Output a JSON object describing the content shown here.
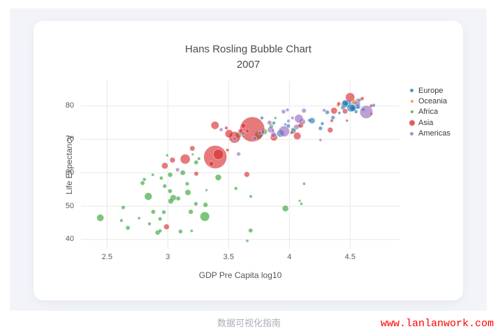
{
  "page": {
    "caption": "数据可视化指南",
    "watermark": "www.lanlanwork.com"
  },
  "chart_data": {
    "type": "scatter",
    "title": "Hans Rosling Bubble Chart",
    "subtitle": "2007",
    "xlabel": "GDP Pre Capita log10",
    "ylabel": "Life Expectancy",
    "xticks": [
      2.5,
      3,
      3.5,
      4,
      4.5
    ],
    "yticks": [
      40,
      50,
      60,
      70,
      80
    ],
    "xlim": [
      2.29,
      4.91
    ],
    "ylim": [
      37.3,
      87.5
    ],
    "grid": true,
    "legend_position": "right",
    "size_encoding": "population-millions",
    "point_format": [
      "gdp_per_capita_log10",
      "life_expectancy",
      "population_millions"
    ],
    "series": [
      {
        "name": "Europe",
        "color": "#1f77b4",
        "legend_marker_r": 2.4,
        "points": [
          [
            3.774,
            76.4,
            3.6
          ],
          [
            4.558,
            79.8,
            8.2
          ],
          [
            4.528,
            79.4,
            10.4
          ],
          [
            3.872,
            74.9,
            4.6
          ],
          [
            4.029,
            73.0,
            7.3
          ],
          [
            4.165,
            75.7,
            4.5
          ],
          [
            4.359,
            76.5,
            10.2
          ],
          [
            4.548,
            78.3,
            5.5
          ],
          [
            4.521,
            79.3,
            5.2
          ],
          [
            4.484,
            80.7,
            61.1
          ],
          [
            4.507,
            79.4,
            82.4
          ],
          [
            4.44,
            79.5,
            10.7
          ],
          [
            4.256,
            73.3,
            10.0
          ],
          [
            4.558,
            81.8,
            0.3
          ],
          [
            4.609,
            78.9,
            4.1
          ],
          [
            4.456,
            80.5,
            58.1
          ],
          [
            3.966,
            74.5,
            0.7
          ],
          [
            4.566,
            79.8,
            16.6
          ],
          [
            4.693,
            80.2,
            4.6
          ],
          [
            4.187,
            75.6,
            38.5
          ],
          [
            4.312,
            78.1,
            10.6
          ],
          [
            4.034,
            72.5,
            22.3
          ],
          [
            3.991,
            74.0,
            10.2
          ],
          [
            4.271,
            74.7,
            5.4
          ],
          [
            4.411,
            77.9,
            2.0
          ],
          [
            4.46,
            80.9,
            40.4
          ],
          [
            4.53,
            80.9,
            9.0
          ],
          [
            4.574,
            81.7,
            7.5
          ],
          [
            3.927,
            71.8,
            71.2
          ],
          [
            4.521,
            79.4,
            60.8
          ]
        ]
      },
      {
        "name": "Oceania",
        "color": "#ff7f0e",
        "legend_marker_r": 2.0,
        "points": [
          [
            4.537,
            81.2,
            20.4
          ],
          [
            4.401,
            80.2,
            4.1
          ]
        ]
      },
      {
        "name": "Africa",
        "color": "#2ca02c",
        "legend_marker_r": 2.0,
        "points": [
          [
            3.794,
            72.3,
            33.3
          ],
          [
            3.681,
            42.7,
            12.4
          ],
          [
            3.159,
            56.7,
            8.1
          ],
          [
            4.099,
            50.7,
            1.6
          ],
          [
            3.085,
            52.3,
            14.3
          ],
          [
            2.633,
            49.6,
            8.4
          ],
          [
            3.31,
            50.4,
            17.7
          ],
          [
            2.849,
            44.7,
            4.4
          ],
          [
            3.231,
            50.7,
            10.2
          ],
          [
            2.994,
            65.2,
            0.7
          ],
          [
            2.444,
            46.5,
            64.6
          ],
          [
            3.56,
            55.3,
            3.8
          ],
          [
            3.189,
            48.3,
            18.0
          ],
          [
            3.318,
            54.8,
            0.5
          ],
          [
            3.747,
            71.3,
            80.3
          ],
          [
            4.085,
            51.6,
            0.6
          ],
          [
            2.807,
            58.0,
            4.9
          ],
          [
            2.839,
            52.9,
            76.5
          ],
          [
            4.121,
            56.7,
            1.5
          ],
          [
            2.876,
            59.4,
            1.7
          ],
          [
            3.123,
            60.0,
            22.9
          ],
          [
            2.974,
            56.0,
            9.9
          ],
          [
            2.763,
            46.4,
            1.5
          ],
          [
            3.165,
            54.1,
            35.6
          ],
          [
            3.196,
            42.6,
            2.0
          ],
          [
            2.618,
            45.7,
            3.2
          ],
          [
            4.081,
            74.0,
            6.0
          ],
          [
            3.019,
            59.4,
            19.2
          ],
          [
            2.88,
            48.3,
            13.3
          ],
          [
            3.018,
            54.5,
            12.0
          ],
          [
            3.256,
            64.2,
            3.3
          ],
          [
            4.04,
            72.8,
            1.3
          ],
          [
            3.582,
            71.2,
            33.8
          ],
          [
            2.916,
            42.1,
            20.0
          ],
          [
            3.682,
            52.9,
            2.1
          ],
          [
            2.792,
            56.9,
            12.9
          ],
          [
            3.304,
            46.9,
            135.0
          ],
          [
            3.885,
            76.4,
            0.8
          ],
          [
            2.936,
            46.2,
            8.9
          ],
          [
            3.204,
            65.5,
            0.2
          ],
          [
            3.233,
            63.1,
            12.3
          ],
          [
            2.936,
            42.6,
            6.1
          ],
          [
            2.967,
            48.2,
            9.1
          ],
          [
            3.967,
            49.3,
            44.0
          ],
          [
            3.415,
            58.6,
            42.3
          ],
          [
            3.654,
            39.6,
            1.1
          ],
          [
            3.044,
            52.5,
            38.1
          ],
          [
            2.946,
            58.4,
            5.7
          ],
          [
            3.851,
            73.9,
            10.3
          ],
          [
            3.024,
            51.5,
            29.2
          ],
          [
            3.104,
            42.4,
            11.7
          ],
          [
            2.671,
            43.5,
            12.3
          ]
        ]
      },
      {
        "name": "Asia",
        "color": "#d62728",
        "legend_marker_r": 4.0,
        "points": [
          [
            2.989,
            43.8,
            31.9
          ],
          [
            4.474,
            75.6,
            0.7
          ],
          [
            3.143,
            64.1,
            150.4
          ],
          [
            3.234,
            59.7,
            14.1
          ],
          [
            3.695,
            73.0,
            1318.7
          ],
          [
            4.599,
            82.2,
            7.0
          ],
          [
            3.39,
            64.7,
            1110.4
          ],
          [
            3.549,
            70.6,
            223.5
          ],
          [
            4.065,
            71.0,
            69.5
          ],
          [
            3.65,
            59.5,
            27.5
          ],
          [
            4.407,
            80.7,
            6.4
          ],
          [
            4.5,
            82.6,
            127.5
          ],
          [
            3.655,
            72.5,
            6.1
          ],
          [
            3.202,
            67.3,
            23.3
          ],
          [
            4.368,
            78.6,
            49.0
          ],
          [
            4.675,
            77.6,
            2.5
          ],
          [
            4.02,
            72.0,
            4.0
          ],
          [
            4.095,
            74.2,
            24.8
          ],
          [
            3.491,
            66.8,
            2.9
          ],
          [
            2.975,
            62.1,
            47.8
          ],
          [
            3.038,
            63.8,
            28.9
          ],
          [
            4.349,
            75.6,
            3.2
          ],
          [
            3.416,
            65.5,
            169.3
          ],
          [
            3.504,
            71.7,
            91.1
          ],
          [
            4.336,
            72.8,
            27.6
          ],
          [
            4.673,
            80.0,
            4.6
          ],
          [
            3.599,
            72.4,
            20.4
          ],
          [
            3.622,
            74.1,
            19.3
          ],
          [
            4.458,
            78.4,
            23.2
          ],
          [
            3.873,
            70.6,
            65.1
          ],
          [
            3.388,
            74.2,
            85.3
          ],
          [
            3.481,
            73.4,
            4.0
          ],
          [
            3.358,
            62.7,
            22.2
          ]
        ]
      },
      {
        "name": "Americas",
        "color": "#9467bd",
        "legend_marker_r": 2.4,
        "points": [
          [
            4.107,
            75.3,
            40.3
          ],
          [
            3.582,
            65.6,
            9.1
          ],
          [
            3.957,
            72.4,
            190.0
          ],
          [
            4.56,
            80.7,
            33.4
          ],
          [
            4.12,
            78.6,
            16.3
          ],
          [
            3.846,
            72.9,
            44.2
          ],
          [
            3.984,
            78.8,
            4.1
          ],
          [
            3.952,
            78.3,
            11.4
          ],
          [
            3.78,
            72.2,
            9.3
          ],
          [
            3.837,
            75.0,
            13.8
          ],
          [
            3.758,
            71.9,
            6.9
          ],
          [
            3.715,
            70.3,
            12.6
          ],
          [
            3.08,
            60.9,
            8.5
          ],
          [
            3.55,
            70.2,
            7.5
          ],
          [
            3.865,
            72.6,
            2.8
          ],
          [
            4.078,
            76.2,
            108.7
          ],
          [
            3.439,
            72.9,
            5.7
          ],
          [
            3.992,
            75.5,
            3.2
          ],
          [
            3.62,
            71.8,
            6.7
          ],
          [
            3.87,
            71.4,
            28.7
          ],
          [
            4.286,
            78.7,
            4.0
          ],
          [
            4.256,
            69.8,
            1.1
          ],
          [
            4.633,
            78.2,
            301.1
          ],
          [
            4.026,
            76.4,
            3.4
          ],
          [
            4.058,
            73.7,
            26.1
          ]
        ]
      }
    ]
  }
}
